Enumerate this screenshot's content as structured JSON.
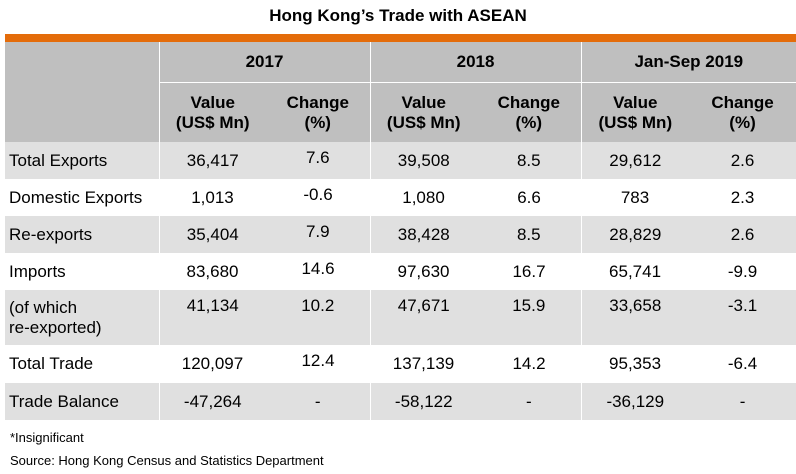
{
  "title": "Hong Kong’s Trade with ASEAN",
  "accent_color": "#e46c0a",
  "header": {
    "periods": [
      "2017",
      "2018",
      "Jan-Sep 2019"
    ],
    "value_label_1": "Value",
    "value_label_2": "(US$ Mn)",
    "change_label_1": "Change",
    "change_label_2": "(%)"
  },
  "rows": [
    {
      "label": "Total Exports",
      "label2": "",
      "v2017": "36,417",
      "c2017": "7.6",
      "v2018": "39,508",
      "c2018": "8.5",
      "v2019": "29,612",
      "c2019": "2.6"
    },
    {
      "label": "Domestic Exports",
      "label2": "",
      "v2017": "1,013",
      "c2017": "-0.6",
      "v2018": "1,080",
      "c2018": "6.6",
      "v2019": "783",
      "c2019": "2.3"
    },
    {
      "label": "Re-exports",
      "label2": "",
      "v2017": "35,404",
      "c2017": "7.9",
      "v2018": "38,428",
      "c2018": "8.5",
      "v2019": "28,829",
      "c2019": "2.6"
    },
    {
      "label": "Imports",
      "label2": "",
      "v2017": "83,680",
      "c2017": "14.6",
      "v2018": "97,630",
      "c2018": "16.7",
      "v2019": "65,741",
      "c2019": "-9.9"
    },
    {
      "label": "(of which",
      "label2": "re-exported)",
      "v2017": "41,134",
      "c2017": "10.2",
      "v2018": "47,671",
      "c2018": "15.9",
      "v2019": "33,658",
      "c2019": "-3.1"
    },
    {
      "label": "Total Trade",
      "label2": "",
      "v2017": "120,097",
      "c2017": "12.4",
      "v2018": "137,139",
      "c2018": "14.2",
      "v2019": "95,353",
      "c2019": "-6.4"
    },
    {
      "label": "Trade Balance",
      "label2": "",
      "v2017": "-47,264",
      "c2017": "-",
      "v2018": "-58,122",
      "c2018": "-",
      "v2019": "-36,129",
      "c2019": "-"
    }
  ],
  "footnote": "*Insignificant",
  "source": "Source: Hong Kong Census and Statistics Department"
}
